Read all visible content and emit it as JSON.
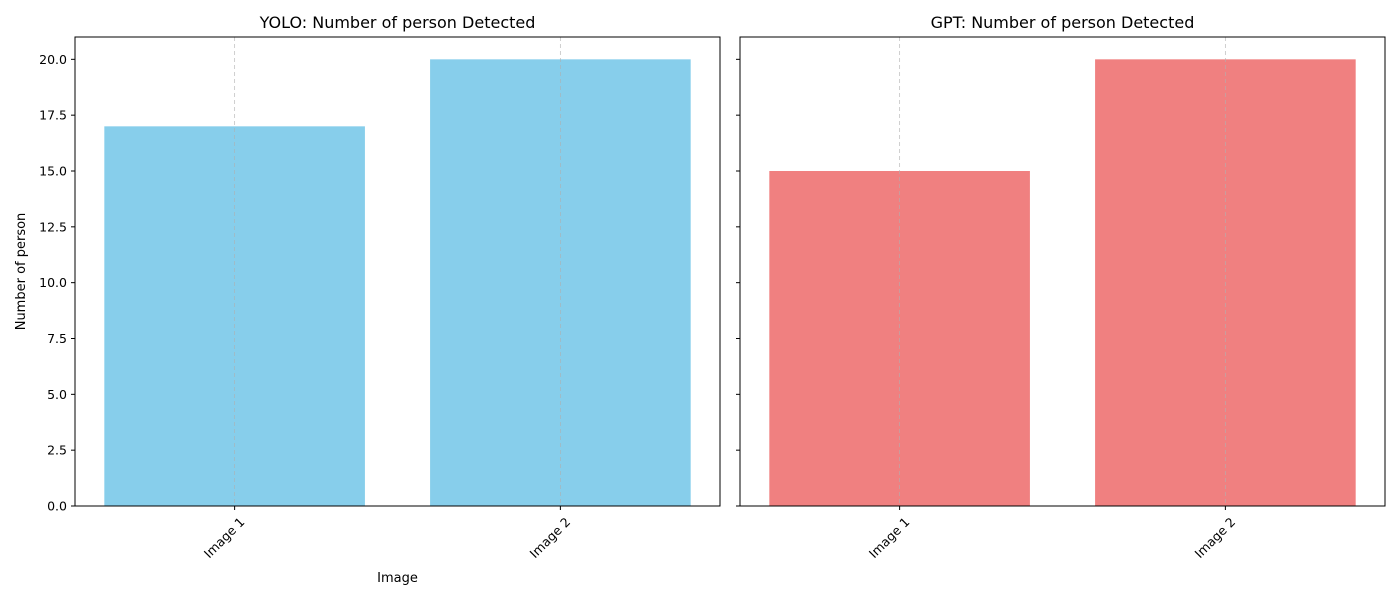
{
  "chart_data": [
    {
      "type": "bar",
      "title": "YOLO: Number of person Detected",
      "xlabel": "Image",
      "ylabel": "Number of person",
      "categories": [
        "Image 1",
        "Image 2"
      ],
      "values": [
        17,
        20
      ],
      "ylim": [
        0,
        21
      ],
      "yticks": [
        "0.0",
        "2.5",
        "5.0",
        "7.5",
        "10.0",
        "12.5",
        "15.0",
        "17.5",
        "20.0"
      ],
      "grid": "x-axis dashed",
      "bar_color": "#87ceeb",
      "tick_rotation_deg": 45
    },
    {
      "type": "bar",
      "title": "GPT: Number of person Detected",
      "xlabel": "",
      "ylabel": "",
      "categories": [
        "Image 1",
        "Image 2"
      ],
      "values": [
        15,
        20
      ],
      "ylim": [
        0,
        21
      ],
      "yticks": [],
      "shared_y_axis": true,
      "grid": "x-axis dashed",
      "bar_color": "#f08080",
      "tick_rotation_deg": 45
    }
  ]
}
